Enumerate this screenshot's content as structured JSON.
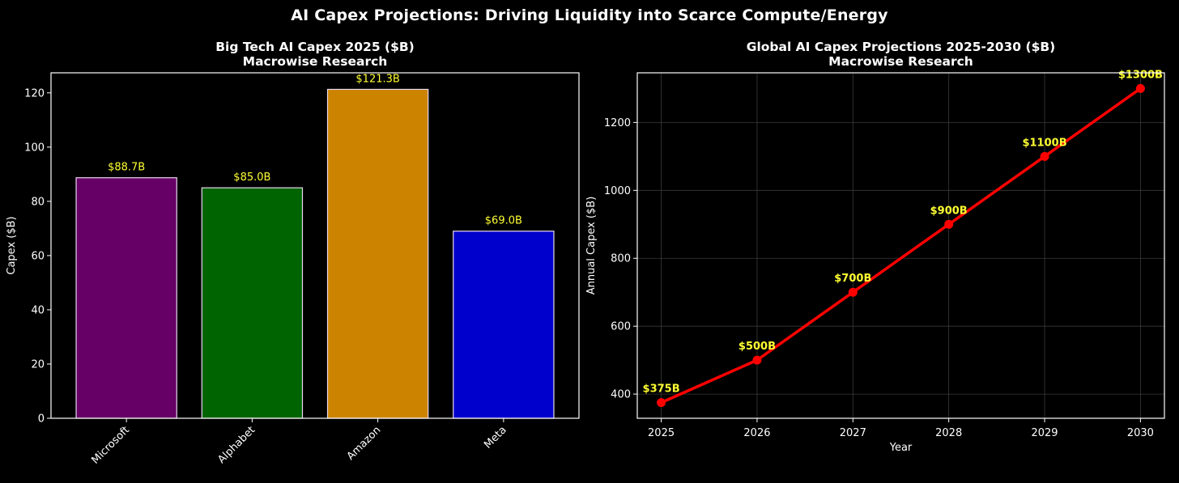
{
  "figure_title": "AI Capex Projections: Driving Liquidity into Scarce Compute/Energy",
  "colors": {
    "background": "#000000",
    "axes_edge": "#ffffff",
    "label_yellow": "#ffff33",
    "line_red": "#ff0000",
    "grid": "#3a3a3a"
  },
  "chart_data": [
    {
      "type": "bar",
      "title": "Big Tech AI Capex 2025 ($B)",
      "subtitle": "Macrowise Research",
      "xlabel": "",
      "ylabel": "Capex ($B)",
      "categories": [
        "Microsoft",
        "Alphabet",
        "Amazon",
        "Meta"
      ],
      "values": [
        88.7,
        85.0,
        121.3,
        69.0
      ],
      "data_labels": [
        "$88.7B",
        "$85.0B",
        "$121.3B",
        "$69.0B"
      ],
      "bar_colors": [
        "#660066",
        "#006400",
        "#cc8400",
        "#0000cc"
      ],
      "ylim": [
        0,
        127.4
      ],
      "yticks": [
        0,
        20,
        40,
        60,
        80,
        100,
        120
      ],
      "grid": false,
      "xtick_rotation": 45
    },
    {
      "type": "line",
      "title": "Global AI Capex Projections 2025-2030 ($B)",
      "subtitle": "Macrowise Research",
      "xlabel": "Year",
      "ylabel": "Annual Capex ($B)",
      "x": [
        2025,
        2026,
        2027,
        2028,
        2029,
        2030
      ],
      "values": [
        375,
        500,
        700,
        900,
        1100,
        1300
      ],
      "data_labels": [
        "$375B",
        "$500B",
        "$700B",
        "$900B",
        "$1100B",
        "$1300B"
      ],
      "xlim": [
        2024.75,
        2030.25
      ],
      "ylim": [
        328.75,
        1346.25
      ],
      "xticks": [
        2025,
        2026,
        2027,
        2028,
        2029,
        2030
      ],
      "yticks": [
        400,
        600,
        800,
        1000,
        1200
      ],
      "grid": true
    }
  ]
}
